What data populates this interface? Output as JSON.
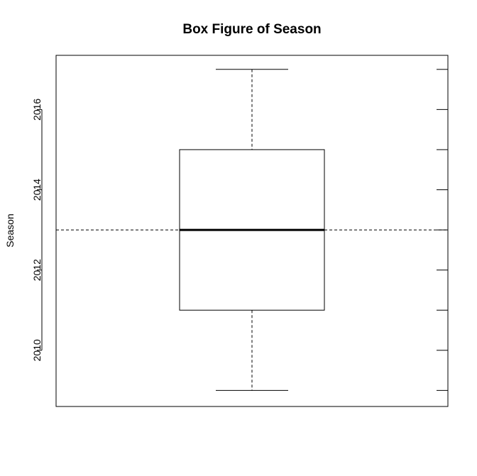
{
  "chart_data": {
    "type": "box",
    "title": "Box Figure of Season",
    "xlabel": "",
    "ylabel": "Season",
    "ylim": [
      2008.6,
      2017.35
    ],
    "yticks": [
      2010,
      2012,
      2014,
      2016
    ],
    "ytick_labels": [
      "2010",
      "2012",
      "2014",
      "2016"
    ],
    "right_ticks": [
      2009,
      2010,
      2011,
      2012,
      2013,
      2014,
      2015,
      2016,
      2017
    ],
    "box": {
      "min": 2009,
      "q1": 2011,
      "median": 2013,
      "q3": 2015,
      "max": 2017
    },
    "reference_line": {
      "value": 2013,
      "style": "dashed"
    },
    "grid": false,
    "legend": "none"
  }
}
